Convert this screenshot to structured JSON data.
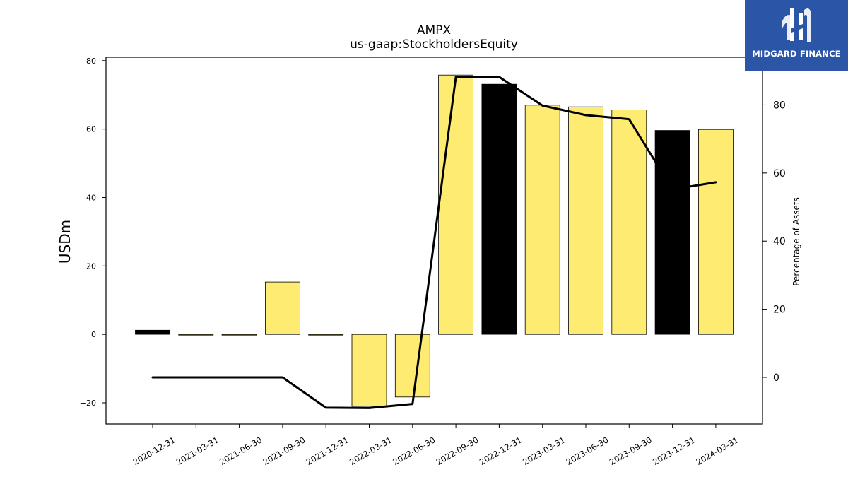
{
  "brand": {
    "name": "MIDGARD FINANCE",
    "background_color": "#2b55a6"
  },
  "chart_data": {
    "type": "bar",
    "title": "AMPX",
    "subtitle": "us-gaap:StockholdersEquity",
    "ylabel": "USDm",
    "y2label": "Percentage of Assets",
    "categories": [
      "2020-12-31",
      "2021-03-31",
      "2021-06-30",
      "2021-09-30",
      "2021-12-31",
      "2022-03-31",
      "2022-06-30",
      "2022-09-30",
      "2022-12-31",
      "2023-03-31",
      "2023-06-30",
      "2023-09-30",
      "2023-12-31",
      "2024-03-31"
    ],
    "yticks": [
      -20,
      0,
      20,
      40,
      60,
      80
    ],
    "ylim": [
      -26.2,
      81.0
    ],
    "y2ticks": [
      0,
      20,
      40,
      60,
      80
    ],
    "y2lim": [
      -13.7,
      94.0
    ],
    "series": [
      {
        "kind": "bar",
        "values": [
          1.2,
          0.0,
          0.0,
          15.3,
          0.0,
          -21.0,
          -18.3,
          75.8,
          73.1,
          67.0,
          66.5,
          65.6,
          59.6,
          59.9
        ],
        "colors": [
          "#000000",
          "#fdeb72",
          "#fdeb72",
          "#fdeb72",
          "#fdeb72",
          "#fdeb72",
          "#fdeb72",
          "#fdeb72",
          "#000000",
          "#fdeb72",
          "#fdeb72",
          "#fdeb72",
          "#000000",
          "#fdeb72"
        ]
      },
      {
        "kind": "line",
        "axis": "right",
        "color": "#000000",
        "values": [
          0.0,
          0.0,
          0.0,
          0.0,
          -8.9,
          -9.0,
          -7.8,
          88.2,
          88.2,
          79.8,
          77.0,
          75.8,
          55.2,
          57.3
        ]
      }
    ],
    "grid": false
  }
}
